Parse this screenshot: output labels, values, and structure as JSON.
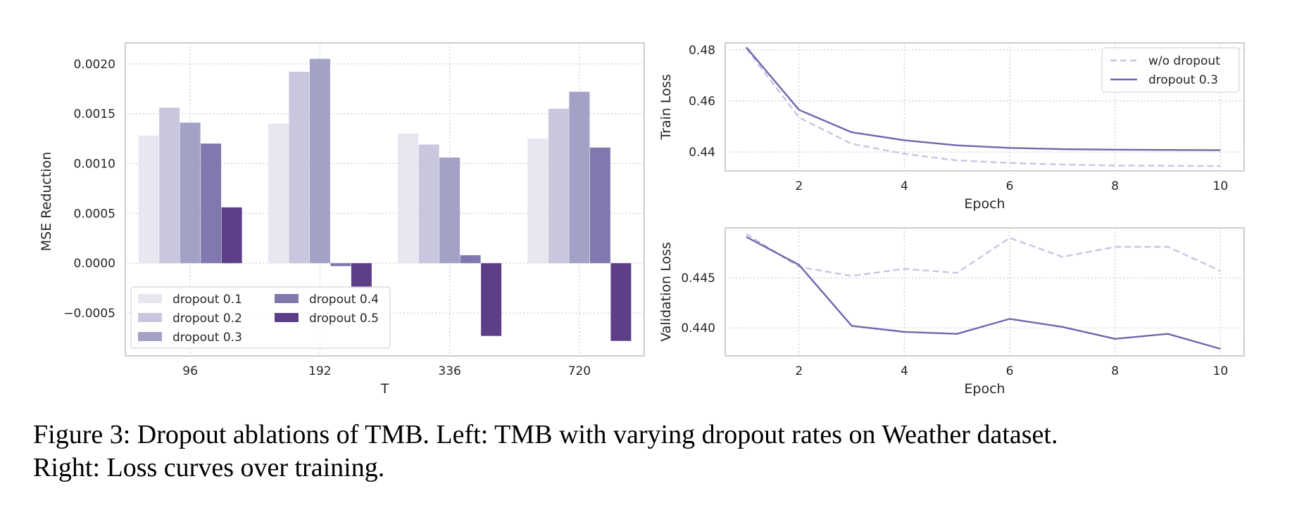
{
  "caption": {
    "line1": "Figure 3: Dropout ablations of TMB. Left: TMB with varying dropout rates on Weather dataset.",
    "line2": "Right: Loss curves over training."
  },
  "colors": {
    "d01": "#e8e6f0",
    "d02": "#c8c7de",
    "d03": "#a3a1c6",
    "d04": "#8079ad",
    "d05": "#5c3f87",
    "wo_dropout": "#c9c4e3",
    "dropout03_line": "#7166ad",
    "grid": "#cccccc",
    "frame": "#cfcfcf"
  },
  "chart_data": [
    {
      "type": "bar",
      "xlabel": "T",
      "ylabel": "MSE Reduction",
      "categories": [
        "96",
        "192",
        "336",
        "720"
      ],
      "ylim": [
        -0.00093,
        0.00221
      ],
      "yticks": [
        -0.0005,
        0.0,
        0.0005,
        0.001,
        0.0015,
        0.002
      ],
      "ytick_labels": [
        "−0.0005",
        "0.0000",
        "0.0005",
        "0.0010",
        "0.0015",
        "0.0020"
      ],
      "grid": true,
      "legend_position": "lower-left",
      "series": [
        {
          "name": "dropout 0.1",
          "color_key": "d01",
          "values": [
            0.00128,
            0.0014,
            0.0013,
            0.00125
          ]
        },
        {
          "name": "dropout 0.2",
          "color_key": "d02",
          "values": [
            0.00156,
            0.00192,
            0.00119,
            0.00155
          ]
        },
        {
          "name": "dropout 0.3",
          "color_key": "d03",
          "values": [
            0.00141,
            0.00205,
            0.00106,
            0.00172
          ]
        },
        {
          "name": "dropout 0.4",
          "color_key": "d04",
          "values": [
            0.0012,
            -3e-05,
            8e-05,
            0.00116
          ]
        },
        {
          "name": "dropout 0.5",
          "color_key": "d05",
          "values": [
            0.00056,
            -0.00025,
            -0.00073,
            -0.00078
          ]
        }
      ]
    },
    {
      "type": "line",
      "xlabel": "Epoch",
      "ylabel": "Train Loss",
      "xlim": [
        0.6,
        10.45
      ],
      "ylim": [
        0.4326,
        0.4827
      ],
      "xticks": [
        2,
        4,
        6,
        8,
        10
      ],
      "yticks": [
        0.44,
        0.46,
        0.48
      ],
      "ytick_labels": [
        "0.44",
        "0.46",
        "0.48"
      ],
      "grid": true,
      "legend_position": "top-right",
      "x": [
        1,
        2,
        3,
        4,
        5,
        6,
        7,
        8,
        9,
        10
      ],
      "series": [
        {
          "name": "w/o dropout",
          "color_key": "wo_dropout",
          "dash": true,
          "values": [
            0.4805,
            0.4535,
            0.4432,
            0.4393,
            0.4367,
            0.4357,
            0.4351,
            0.4347,
            0.4346,
            0.4345
          ]
        },
        {
          "name": "dropout 0.3",
          "color_key": "dropout03_line",
          "dash": false,
          "values": [
            0.481,
            0.4565,
            0.4477,
            0.4446,
            0.4426,
            0.4416,
            0.4411,
            0.4409,
            0.4408,
            0.4407
          ]
        }
      ]
    },
    {
      "type": "line",
      "xlabel": "Epoch",
      "ylabel": "Validation Loss",
      "xlim": [
        0.6,
        10.45
      ],
      "ylim": [
        0.4372,
        0.45
      ],
      "xticks": [
        2,
        4,
        6,
        8,
        10
      ],
      "yticks": [
        0.44,
        0.445
      ],
      "ytick_labels": [
        "0.440",
        "0.445"
      ],
      "grid": true,
      "x": [
        1,
        2,
        3,
        4,
        5,
        6,
        7,
        8,
        9,
        10
      ],
      "series": [
        {
          "name": "w/o dropout",
          "color_key": "wo_dropout",
          "dash": true,
          "values": [
            0.4494,
            0.4461,
            0.4452,
            0.4459,
            0.4455,
            0.449,
            0.4471,
            0.4481,
            0.4481,
            0.4457
          ]
        },
        {
          "name": "dropout 0.3",
          "color_key": "dropout03_line",
          "dash": false,
          "values": [
            0.4491,
            0.4463,
            0.4402,
            0.4396,
            0.4394,
            0.4409,
            0.4401,
            0.4389,
            0.4394,
            0.4379
          ]
        }
      ]
    }
  ]
}
